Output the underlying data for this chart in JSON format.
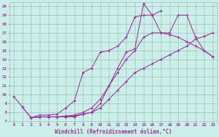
{
  "bg_color": "#cceee8",
  "line_color": "#993399",
  "grid_color": "#99bbbb",
  "xlabel": "Windchill (Refroidissement éolien,°C)",
  "xlim": [
    -0.5,
    23.5
  ],
  "ylim": [
    7,
    20.5
  ],
  "xticks": [
    0,
    1,
    2,
    3,
    4,
    5,
    6,
    7,
    8,
    9,
    10,
    11,
    12,
    13,
    14,
    15,
    16,
    17,
    18,
    19,
    20,
    21,
    22,
    23
  ],
  "yticks": [
    7,
    8,
    9,
    10,
    11,
    12,
    13,
    14,
    15,
    16,
    17,
    18,
    19,
    20
  ],
  "lines": [
    {
      "x": [
        0,
        1,
        2,
        3,
        4,
        5,
        6,
        7,
        8,
        9,
        10,
        11,
        12,
        13,
        14,
        15,
        16,
        17
      ],
      "y": [
        9.8,
        8.6,
        7.4,
        7.7,
        7.7,
        7.8,
        8.5,
        9.3,
        12.5,
        13.0,
        14.8,
        15.0,
        15.5,
        16.5,
        18.8,
        19.0,
        19.0,
        19.5
      ]
    },
    {
      "x": [
        1,
        2,
        3,
        4,
        5,
        6,
        7,
        8,
        9,
        10,
        11,
        12,
        13,
        14,
        15,
        16,
        17,
        18,
        19,
        20,
        21,
        22,
        23
      ],
      "y": [
        8.6,
        7.4,
        7.5,
        7.5,
        7.5,
        7.5,
        7.5,
        7.8,
        8.0,
        8.5,
        9.5,
        10.5,
        11.5,
        12.5,
        13.0,
        13.5,
        14.0,
        14.5,
        15.0,
        15.5,
        16.3,
        16.6,
        17.0
      ]
    },
    {
      "x": [
        2,
        3,
        4,
        5,
        6,
        7,
        8,
        9,
        10,
        11,
        12,
        13,
        14,
        15,
        16,
        17,
        18,
        19,
        20,
        21,
        22,
        23
      ],
      "y": [
        7.4,
        7.5,
        7.5,
        7.5,
        7.6,
        7.7,
        8.0,
        8.5,
        9.5,
        11.0,
        12.5,
        14.0,
        15.0,
        16.5,
        17.0,
        17.0,
        16.8,
        16.5,
        16.0,
        15.5,
        15.0,
        14.3
      ]
    },
    {
      "x": [
        2,
        3,
        4,
        5,
        6,
        7,
        8,
        9,
        10,
        11,
        12,
        13,
        14,
        15,
        16,
        17,
        18,
        19,
        20,
        21,
        22,
        23
      ],
      "y": [
        7.4,
        7.5,
        7.5,
        7.5,
        7.5,
        7.6,
        7.8,
        8.0,
        9.0,
        11.0,
        13.0,
        14.8,
        15.2,
        20.3,
        19.0,
        17.0,
        17.0,
        19.0,
        19.0,
        16.5,
        15.0,
        14.3
      ]
    }
  ],
  "marker": "+",
  "markersize": 3,
  "linewidth": 0.8,
  "tick_fontsize": 4.5,
  "xlabel_fontsize": 5.5
}
